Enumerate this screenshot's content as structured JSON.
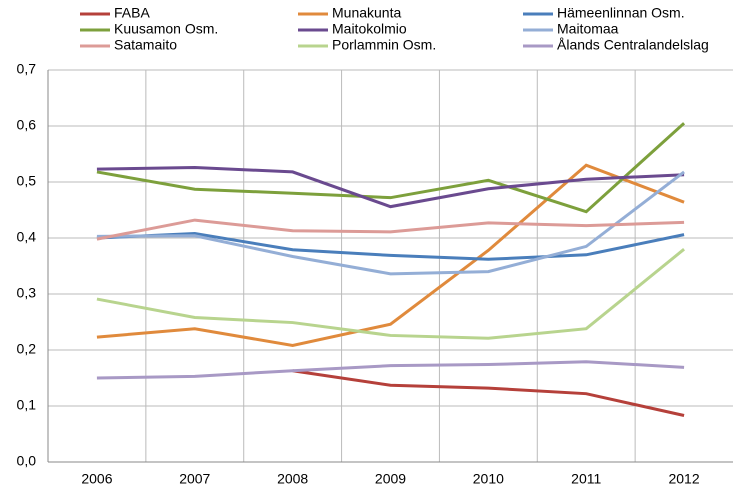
{
  "chart_data": {
    "type": "line",
    "categories": [
      "2006",
      "2007",
      "2008",
      "2009",
      "2010",
      "2011",
      "2012"
    ],
    "series": [
      {
        "name": "FABA",
        "color": "#b5403a",
        "values": [
          null,
          null,
          0.163,
          0.137,
          0.132,
          0.122,
          0.083
        ]
      },
      {
        "name": "Munakunta",
        "color": "#e08a3c",
        "values": [
          0.223,
          0.238,
          0.208,
          0.246,
          0.378,
          0.53,
          0.464
        ]
      },
      {
        "name": "Hämeenlinnan Osm.",
        "color": "#4a7ebb",
        "values": [
          0.4,
          0.408,
          0.379,
          0.369,
          0.362,
          0.37,
          0.406
        ]
      },
      {
        "name": "Kuusamon Osm.",
        "color": "#7da03c",
        "values": [
          0.518,
          0.487,
          0.48,
          0.472,
          0.503,
          0.447,
          0.605
        ]
      },
      {
        "name": "Maitokolmio",
        "color": "#6a4a8f",
        "values": [
          0.523,
          0.526,
          0.518,
          0.456,
          0.488,
          0.505,
          0.513
        ]
      },
      {
        "name": "Maitomaa",
        "color": "#94aed6",
        "values": [
          0.403,
          0.404,
          0.367,
          0.336,
          0.34,
          0.385,
          0.518
        ]
      },
      {
        "name": "Satamaito",
        "color": "#dc9b97",
        "values": [
          0.398,
          0.432,
          0.413,
          0.411,
          0.427,
          0.422,
          0.428
        ]
      },
      {
        "name": "Porlammin Osm.",
        "color": "#b8d48e",
        "values": [
          0.291,
          0.258,
          0.249,
          0.226,
          0.221,
          0.238,
          0.38
        ]
      },
      {
        "name": "Ålands Centralandelslag",
        "color": "#a899c5",
        "values": [
          0.15,
          0.153,
          0.163,
          0.172,
          0.174,
          0.179,
          0.169
        ]
      }
    ],
    "ylim": [
      0,
      0.7
    ],
    "yticks": [
      {
        "value": 0,
        "label": "0,0"
      },
      {
        "value": 0.1,
        "label": "0,1"
      },
      {
        "value": 0.2,
        "label": "0,2"
      },
      {
        "value": 0.3,
        "label": "0,3"
      },
      {
        "value": 0.4,
        "label": "0,4"
      },
      {
        "value": 0.5,
        "label": "0,5"
      },
      {
        "value": 0.6,
        "label": "0,6"
      },
      {
        "value": 0.7,
        "label": "0,7"
      }
    ],
    "grid": true
  }
}
